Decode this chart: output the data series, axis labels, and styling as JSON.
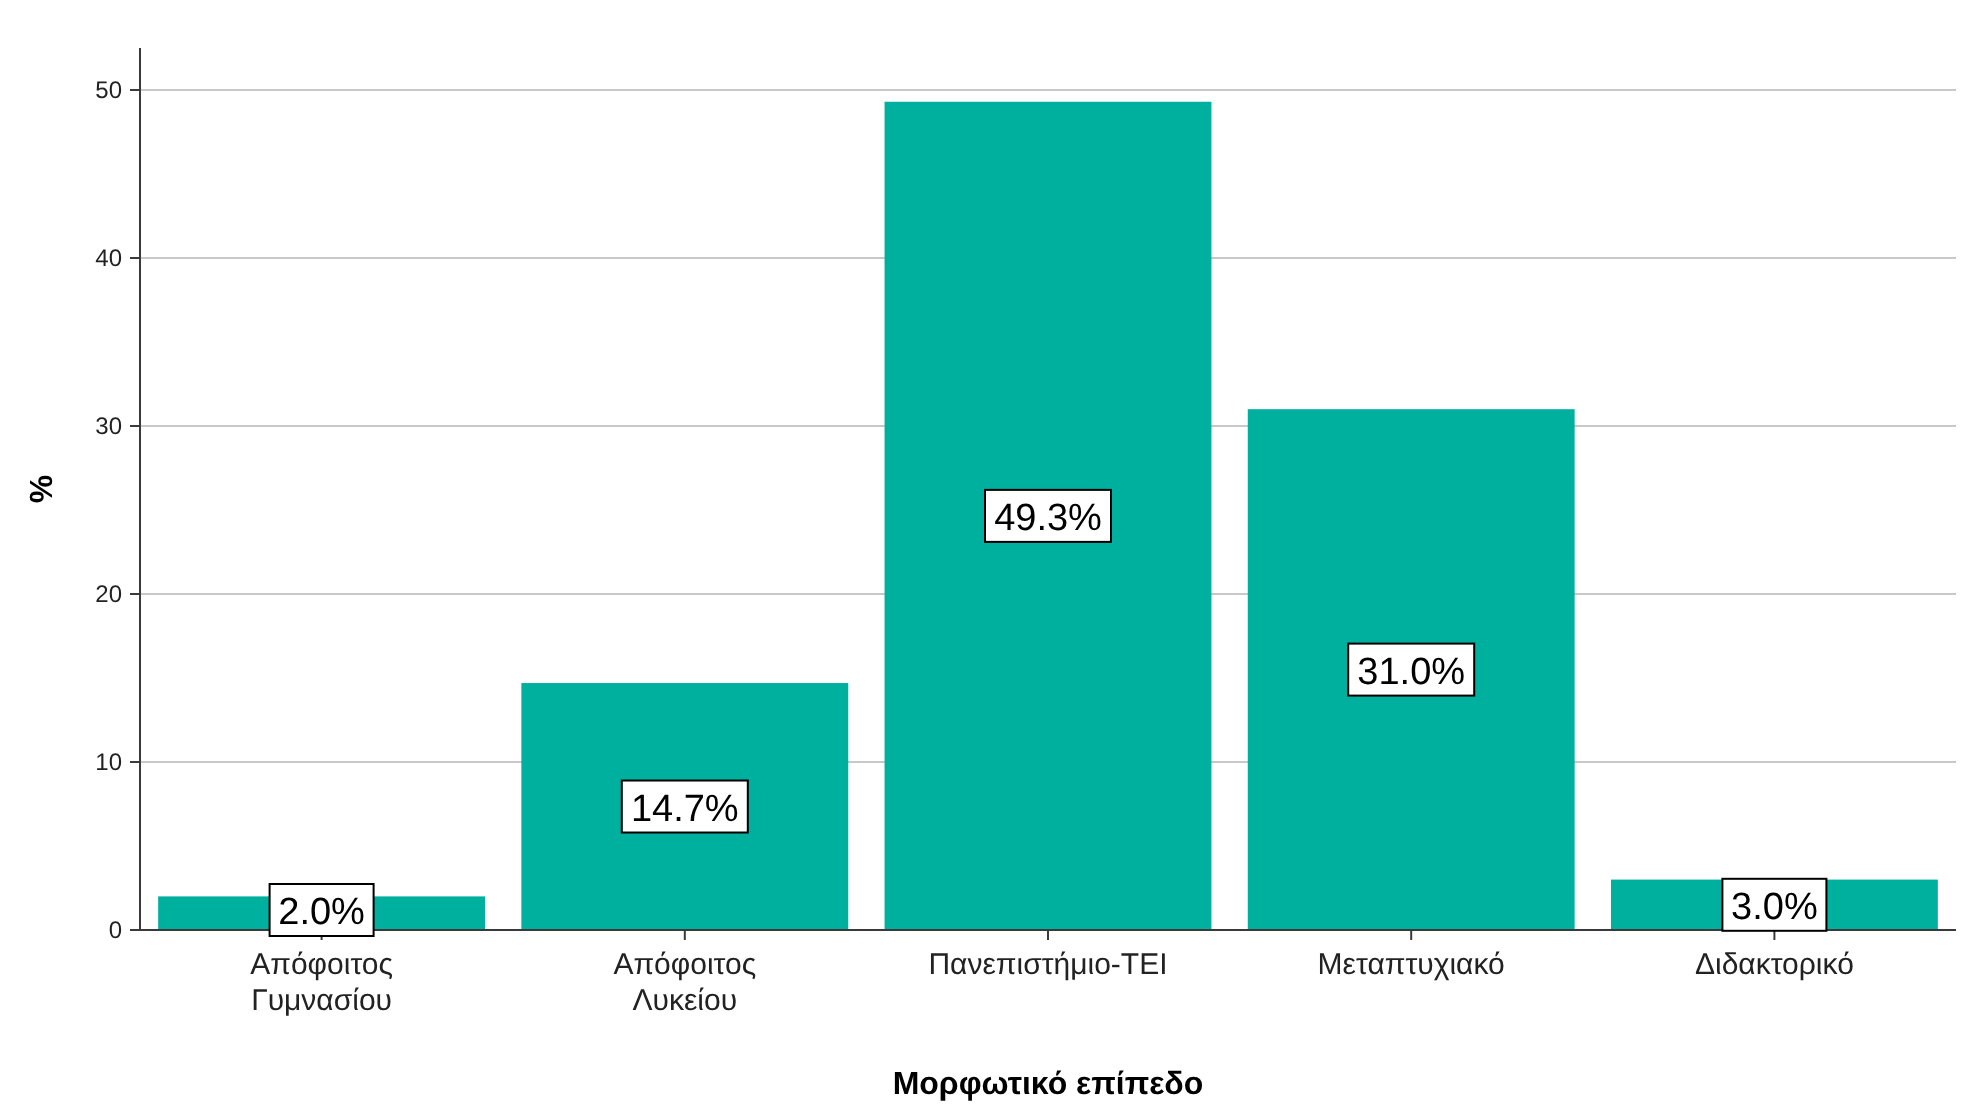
{
  "chart_data": {
    "type": "bar",
    "xlabel": "Μορφωτικό επίπεδο",
    "ylabel": "%",
    "categories": [
      "Απόφοιτος Γυμνασίου",
      "Απόφοιτος Λυκείου",
      "Πανεπιστήμιο-ΤΕΙ",
      "Μεταπτυχιακό",
      "Διδακτορικό"
    ],
    "values": [
      2.0,
      14.7,
      49.3,
      31.0,
      3.0
    ],
    "value_labels": [
      "2.0%",
      "14.7%",
      "49.3%",
      "31.0%",
      "3.0%"
    ],
    "color": "#00b09f",
    "ylim": [
      0,
      52.5
    ],
    "yticks": [
      0,
      10,
      20,
      30,
      40,
      50
    ],
    "grid": "y"
  }
}
